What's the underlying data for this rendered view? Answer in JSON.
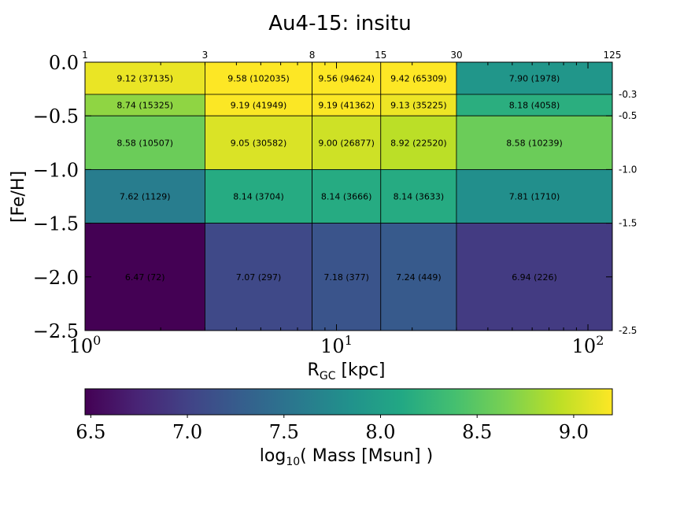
{
  "chart_data": {
    "type": "heatmap",
    "title": "Au4-15: insitu",
    "xlabel_main": "R",
    "xlabel_sub": "GC",
    "xlabel_unit": " [kpc]",
    "ylabel": "[Fe/H]",
    "x_scale": "log",
    "xlim": [
      1,
      125
    ],
    "ylim": [
      -2.5,
      0.0
    ],
    "x_edges": [
      1,
      3,
      8,
      15,
      30,
      125
    ],
    "x_edge_labels": [
      "1",
      "3",
      "8",
      "15",
      "30",
      "125"
    ],
    "y_edges": [
      0.0,
      -0.3,
      -0.5,
      -1.0,
      -1.5,
      -2.5
    ],
    "y_edge_labels": [
      "-0.3",
      "-0.5",
      "-1.0",
      "-1.5",
      "-2.5"
    ],
    "x_major_ticks": [
      {
        "value": 1,
        "base": "10",
        "exp": "0"
      },
      {
        "value": 10,
        "base": "10",
        "exp": "1"
      },
      {
        "value": 100,
        "base": "10",
        "exp": "2"
      }
    ],
    "y_ticks": [
      {
        "value": 0.0,
        "label": "0.0"
      },
      {
        "value": -0.5,
        "label": "−0.5"
      },
      {
        "value": -1.0,
        "label": "−1.0"
      },
      {
        "value": -1.5,
        "label": "−1.5"
      },
      {
        "value": -2.0,
        "label": "−2.0"
      },
      {
        "value": -2.5,
        "label": "−2.5"
      }
    ],
    "cells": [
      [
        {
          "value": 9.12,
          "count": 37135
        },
        {
          "value": 9.58,
          "count": 102035
        },
        {
          "value": 9.56,
          "count": 94624
        },
        {
          "value": 9.42,
          "count": 65309
        },
        {
          "value": 7.9,
          "count": 1978
        }
      ],
      [
        {
          "value": 8.74,
          "count": 15325
        },
        {
          "value": 9.19,
          "count": 41949
        },
        {
          "value": 9.19,
          "count": 41362
        },
        {
          "value": 9.13,
          "count": 35225
        },
        {
          "value": 8.18,
          "count": 4058
        }
      ],
      [
        {
          "value": 8.58,
          "count": 10507
        },
        {
          "value": 9.05,
          "count": 30582
        },
        {
          "value": 9.0,
          "count": 26877
        },
        {
          "value": 8.92,
          "count": 22520
        },
        {
          "value": 8.58,
          "count": 10239
        }
      ],
      [
        {
          "value": 7.62,
          "count": 1129
        },
        {
          "value": 8.14,
          "count": 3704
        },
        {
          "value": 8.14,
          "count": 3666
        },
        {
          "value": 8.14,
          "count": 3633
        },
        {
          "value": 7.81,
          "count": 1710
        }
      ],
      [
        {
          "value": 6.47,
          "count": 72
        },
        {
          "value": 7.07,
          "count": 297
        },
        {
          "value": 7.18,
          "count": 377
        },
        {
          "value": 7.24,
          "count": 449
        },
        {
          "value": 6.94,
          "count": 226
        }
      ]
    ],
    "colorbar": {
      "colormap": "viridis",
      "vmin": 6.47,
      "vmax": 9.2,
      "label_main": "log",
      "label_sub": "10",
      "label_rest": "( Mass [Msun] )",
      "ticks": [
        {
          "value": 6.5,
          "label": "6.5"
        },
        {
          "value": 7.0,
          "label": "7.0"
        },
        {
          "value": 7.5,
          "label": "7.5"
        },
        {
          "value": 8.0,
          "label": "8.0"
        },
        {
          "value": 8.5,
          "label": "8.5"
        },
        {
          "value": 9.0,
          "label": "9.0"
        }
      ]
    }
  }
}
